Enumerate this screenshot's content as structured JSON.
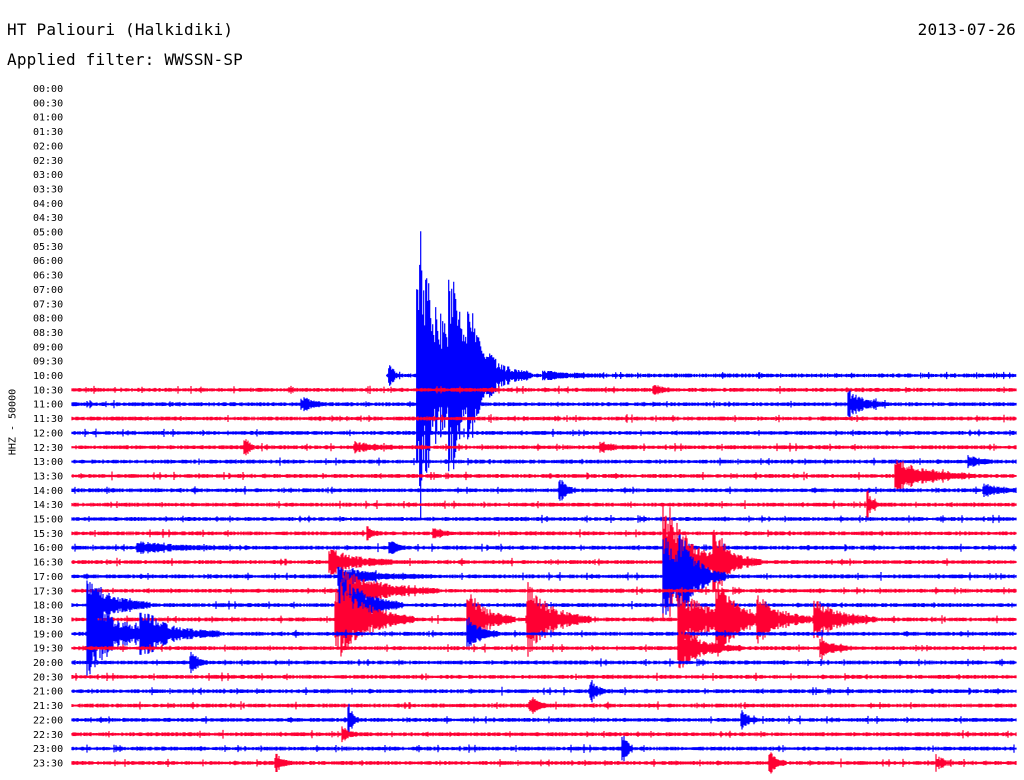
{
  "header": {
    "station": "HT Paliouri (Halkidiki)",
    "date": "2013-07-26",
    "filter": "Applied filter: WWSSN-SP"
  },
  "chart_data": {
    "type": "line",
    "title": "HT Paliouri (Halkidiki)",
    "subtitle": "Applied filter: WWSSN-SP",
    "ylabel": "HHZ - 50000",
    "row_labels": [
      "00:00",
      "00:30",
      "01:00",
      "01:30",
      "02:00",
      "02:30",
      "03:00",
      "03:30",
      "04:00",
      "04:30",
      "05:00",
      "05:30",
      "06:00",
      "06:30",
      "07:00",
      "07:30",
      "08:00",
      "08:30",
      "09:00",
      "09:30",
      "10:00",
      "10:30",
      "11:00",
      "11:30",
      "12:00",
      "12:30",
      "13:00",
      "13:30",
      "14:00",
      "14:30",
      "15:00",
      "15:30",
      "16:00",
      "16:30",
      "17:00",
      "17:30",
      "18:00",
      "18:30",
      "19:00",
      "19:30",
      "20:00",
      "20:30",
      "21:00",
      "21:30",
      "22:00",
      "22:30",
      "23:00",
      "23:30"
    ],
    "x_unit": "minutes after row start",
    "x_range": [
      0,
      30
    ],
    "first_trace_row": "10:00",
    "first_trace_start_min": 10.0,
    "colors": [
      "#0000ff",
      "#ff0033"
    ],
    "events": [
      {
        "row": "10:00",
        "t": 10.1,
        "amp": 0.9,
        "dur": 0.3
      },
      {
        "row": "10:00",
        "t": 11.0,
        "amp": 11.5,
        "dur": 2.0
      },
      {
        "row": "10:00",
        "t": 12.0,
        "amp": 5.5,
        "dur": 1.5
      },
      {
        "row": "10:00",
        "t": 12.6,
        "amp": 3.0,
        "dur": 2.0
      },
      {
        "row": "10:00",
        "t": 15.0,
        "amp": 0.3,
        "dur": 2.0
      },
      {
        "row": "10:30",
        "t": 18.5,
        "amp": 0.35,
        "dur": 0.5
      },
      {
        "row": "11:00",
        "t": 7.3,
        "amp": 0.5,
        "dur": 0.8
      },
      {
        "row": "11:00",
        "t": 11.0,
        "amp": 0.4,
        "dur": 1.5
      },
      {
        "row": "11:00",
        "t": 24.7,
        "amp": 1.0,
        "dur": 1.2
      },
      {
        "row": "12:30",
        "t": 5.5,
        "amp": 0.8,
        "dur": 0.3
      },
      {
        "row": "12:30",
        "t": 9.0,
        "amp": 0.35,
        "dur": 1.5
      },
      {
        "row": "12:30",
        "t": 16.8,
        "amp": 0.3,
        "dur": 1.0
      },
      {
        "row": "13:00",
        "t": 28.5,
        "amp": 0.4,
        "dur": 0.8
      },
      {
        "row": "13:30",
        "t": 26.2,
        "amp": 1.2,
        "dur": 2.5
      },
      {
        "row": "14:00",
        "t": 15.5,
        "amp": 0.9,
        "dur": 0.5
      },
      {
        "row": "14:00",
        "t": 29.0,
        "amp": 0.4,
        "dur": 1.5
      },
      {
        "row": "14:30",
        "t": 25.3,
        "amp": 1.0,
        "dur": 0.3
      },
      {
        "row": "15:30",
        "t": 9.4,
        "amp": 0.5,
        "dur": 0.4
      },
      {
        "row": "15:30",
        "t": 11.5,
        "amp": 0.4,
        "dur": 0.6
      },
      {
        "row": "16:00",
        "t": 2.1,
        "amp": 0.4,
        "dur": 3.0
      },
      {
        "row": "16:00",
        "t": 10.1,
        "amp": 0.6,
        "dur": 0.5
      },
      {
        "row": "16:30",
        "t": 8.2,
        "amp": 1.0,
        "dur": 2.0
      },
      {
        "row": "16:30",
        "t": 18.8,
        "amp": 5.0,
        "dur": 2.0
      },
      {
        "row": "16:30",
        "t": 20.4,
        "amp": 2.0,
        "dur": 1.5
      },
      {
        "row": "17:00",
        "t": 8.5,
        "amp": 0.6,
        "dur": 3.0
      },
      {
        "row": "17:00",
        "t": 18.8,
        "amp": 3.0,
        "dur": 2.0
      },
      {
        "row": "17:00",
        "t": 19.3,
        "amp": 2.5,
        "dur": 1.0
      },
      {
        "row": "17:30",
        "t": 8.6,
        "amp": 1.5,
        "dur": 3.0
      },
      {
        "row": "18:00",
        "t": 0.5,
        "amp": 2.0,
        "dur": 2.0
      },
      {
        "row": "18:00",
        "t": 8.5,
        "amp": 2.5,
        "dur": 2.0
      },
      {
        "row": "18:30",
        "t": 8.4,
        "amp": 3.0,
        "dur": 2.5
      },
      {
        "row": "18:30",
        "t": 12.6,
        "amp": 2.0,
        "dur": 1.5
      },
      {
        "row": "18:30",
        "t": 14.5,
        "amp": 2.5,
        "dur": 2.0
      },
      {
        "row": "18:30",
        "t": 19.3,
        "amp": 2.0,
        "dur": 3.0
      },
      {
        "row": "18:30",
        "t": 20.5,
        "amp": 2.5,
        "dur": 1.5
      },
      {
        "row": "18:30",
        "t": 21.8,
        "amp": 1.5,
        "dur": 2.0
      },
      {
        "row": "18:30",
        "t": 23.6,
        "amp": 1.5,
        "dur": 2.0
      },
      {
        "row": "19:00",
        "t": 0.5,
        "amp": 3.0,
        "dur": 2.5
      },
      {
        "row": "19:00",
        "t": 2.2,
        "amp": 1.5,
        "dur": 2.5
      },
      {
        "row": "19:00",
        "t": 12.6,
        "amp": 1.2,
        "dur": 1.0
      },
      {
        "row": "19:30",
        "t": 19.3,
        "amp": 1.5,
        "dur": 2.0
      },
      {
        "row": "19:30",
        "t": 23.8,
        "amp": 0.8,
        "dur": 1.0
      },
      {
        "row": "20:00",
        "t": 3.8,
        "amp": 0.7,
        "dur": 0.5
      },
      {
        "row": "21:00",
        "t": 16.5,
        "amp": 0.8,
        "dur": 0.5
      },
      {
        "row": "21:30",
        "t": 14.6,
        "amp": 0.6,
        "dur": 0.5
      },
      {
        "row": "22:00",
        "t": 8.8,
        "amp": 1.2,
        "dur": 0.3
      },
      {
        "row": "22:00",
        "t": 21.3,
        "amp": 0.6,
        "dur": 0.5
      },
      {
        "row": "22:30",
        "t": 8.6,
        "amp": 0.5,
        "dur": 0.5
      },
      {
        "row": "23:00",
        "t": 17.5,
        "amp": 1.5,
        "dur": 0.3
      },
      {
        "row": "23:30",
        "t": 6.5,
        "amp": 0.6,
        "dur": 0.5
      },
      {
        "row": "23:30",
        "t": 22.2,
        "amp": 0.7,
        "dur": 0.5
      },
      {
        "row": "23:30",
        "t": 27.5,
        "amp": 0.5,
        "dur": 0.5
      }
    ]
  }
}
